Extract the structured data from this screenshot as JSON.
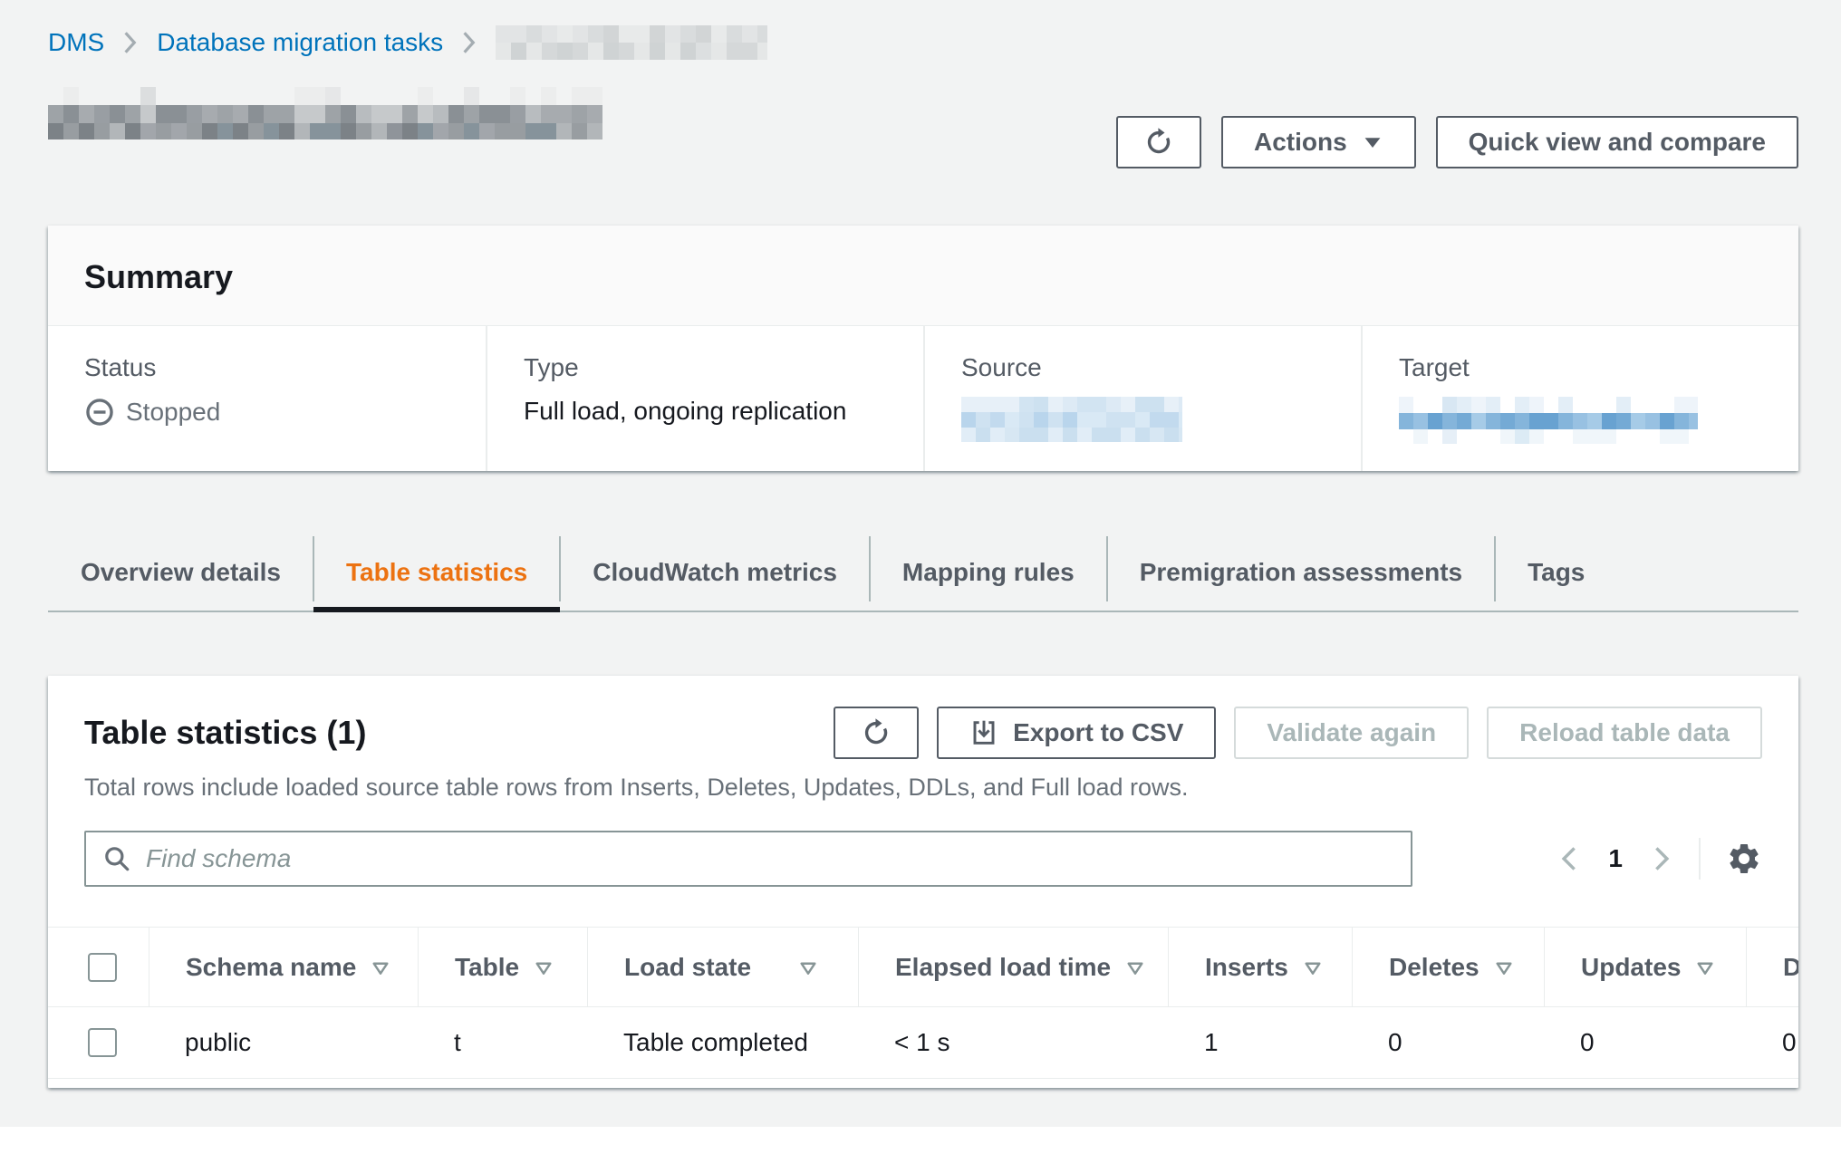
{
  "breadcrumb": {
    "items": [
      "DMS",
      "Database migration tasks"
    ]
  },
  "header": {
    "actions_label": "Actions",
    "quick_view_label": "Quick view and compare"
  },
  "summary": {
    "title": "Summary",
    "status": {
      "label": "Status",
      "value": "Stopped"
    },
    "type": {
      "label": "Type",
      "value": "Full load, ongoing replication"
    },
    "source": {
      "label": "Source"
    },
    "target": {
      "label": "Target"
    }
  },
  "tabs": [
    "Overview details",
    "Table statistics",
    "CloudWatch metrics",
    "Mapping rules",
    "Premigration assessments",
    "Tags"
  ],
  "table_panel": {
    "title": "Table statistics (1)",
    "description": "Total rows include loaded source table rows from Inserts, Deletes, Updates, DDLs, and Full load rows.",
    "export_label": "Export to CSV",
    "validate_label": "Validate again",
    "reload_label": "Reload table data",
    "search_placeholder": "Find schema",
    "pagination": {
      "page": "1"
    },
    "columns": [
      "Schema name",
      "Table",
      "Load state",
      "Elapsed load time",
      "Inserts",
      "Deletes",
      "Updates",
      "DDLs"
    ],
    "rows": [
      [
        "public",
        "t",
        "Table completed",
        "< 1 s",
        "1",
        "0",
        "0",
        "0"
      ]
    ]
  },
  "colors": {
    "accent_orange": "#ec7211",
    "link_blue": "#0073bb",
    "text_dark": "#16191f",
    "text_gray": "#545b64",
    "status_gray": "#687078",
    "border_light": "#eaeded"
  },
  "icons": {
    "refresh": "circular-arrow",
    "caret_down": "▼",
    "download": "down-arrow-into-tray",
    "stopped": "⊖",
    "search": "magnifier",
    "chevron_left": "‹",
    "chevron_right": "›",
    "gear": "⚙",
    "sort": "▽",
    "breadcrumb_chevron": "›",
    "checkbox": "☐"
  }
}
